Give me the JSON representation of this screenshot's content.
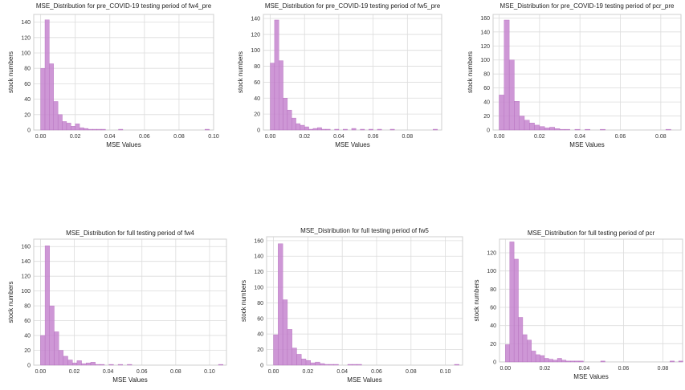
{
  "colors": {
    "bar_fill": "#c685cf",
    "bar_stroke": "#b56fbe",
    "grid": "#dcdcdc",
    "frame": "#cfcfcf"
  },
  "chart_data": [
    {
      "type": "bar",
      "title": "MSE_Distribution for pre_COVID-19 testing period of fw4_pre",
      "xlabel": "MSE Values",
      "ylabel": "stock numbers",
      "bin_start": 0.0,
      "bin_width": 0.0025,
      "values": [
        80,
        143,
        86,
        37,
        20,
        11,
        9,
        5,
        8,
        3,
        2,
        1,
        1,
        1,
        1,
        0,
        0,
        0,
        1,
        0,
        0,
        0,
        0,
        0,
        0,
        0,
        0,
        0,
        0,
        0,
        0,
        0,
        0,
        0,
        0,
        0,
        0,
        0,
        1
      ],
      "xlim": [
        -0.004,
        0.1
      ],
      "ylim": [
        0,
        150
      ],
      "xticks": [
        0.0,
        0.02,
        0.04,
        0.06,
        0.08,
        0.1
      ],
      "xtick_labels": [
        "0.00",
        "0.02",
        "0.04",
        "0.06",
        "0.08",
        "0.10"
      ],
      "yticks": [
        0,
        20,
        40,
        60,
        80,
        100,
        120,
        140
      ],
      "ytick_labels": [
        "0",
        "20",
        "40",
        "60",
        "80",
        "100",
        "120",
        "140"
      ],
      "grid": true
    },
    {
      "type": "bar",
      "title": "MSE_Distribution for pre_COVID-19 testing period of fw5_pre",
      "xlabel": "MSE Values",
      "ylabel": "stock numbers",
      "bin_start": 0.0,
      "bin_width": 0.0025,
      "values": [
        84,
        138,
        87,
        40,
        25,
        15,
        8,
        6,
        4,
        1,
        2,
        3,
        1,
        1,
        0,
        1,
        0,
        1,
        0,
        2,
        0,
        1,
        0,
        1,
        0,
        1,
        0,
        0,
        1,
        0,
        0,
        0,
        0,
        0,
        0,
        0,
        0,
        0,
        1
      ],
      "xlim": [
        -0.004,
        0.1
      ],
      "ylim": [
        0,
        145
      ],
      "xticks": [
        0.0,
        0.02,
        0.04,
        0.06,
        0.08
      ],
      "xtick_labels": [
        "0.00",
        "0.02",
        "0.04",
        "0.06",
        "0.08"
      ],
      "yticks": [
        0,
        20,
        40,
        60,
        80,
        100,
        120,
        140
      ],
      "ytick_labels": [
        "0",
        "20",
        "40",
        "60",
        "80",
        "100",
        "120",
        "140"
      ],
      "grid": true
    },
    {
      "type": "bar",
      "title": "MSE_Distribution for pre_COVID-19 testing period of pcr_pre",
      "xlabel": "MSE Values",
      "ylabel": "stock numbers",
      "bin_start": 0.0,
      "bin_width": 0.0025,
      "values": [
        50,
        157,
        100,
        41,
        20,
        14,
        10,
        7,
        5,
        3,
        4,
        2,
        1,
        1,
        0,
        1,
        0,
        1,
        0,
        0,
        1,
        0,
        0,
        0,
        0,
        0,
        0,
        0,
        0,
        0,
        0,
        0,
        0,
        1
      ],
      "xlim": [
        -0.003,
        0.09
      ],
      "ylim": [
        0,
        165
      ],
      "xticks": [
        0.0,
        0.02,
        0.04,
        0.06,
        0.08
      ],
      "xtick_labels": [
        "0.00",
        "0.02",
        "0.04",
        "0.06",
        "0.08"
      ],
      "yticks": [
        0,
        20,
        40,
        60,
        80,
        100,
        120,
        140,
        160
      ],
      "ytick_labels": [
        "0",
        "20",
        "40",
        "60",
        "80",
        "100",
        "120",
        "140",
        "160"
      ],
      "grid": true
    },
    {
      "type": "bar",
      "title": "MSE_Distribution for full testing period of fw4",
      "xlabel": "MSE Values",
      "ylabel": "stock numbers",
      "bin_start": 0.0,
      "bin_width": 0.0027,
      "values": [
        40,
        161,
        80,
        45,
        20,
        12,
        7,
        3,
        6,
        2,
        3,
        4,
        1,
        1,
        0,
        1,
        0,
        1,
        0,
        1,
        0,
        0,
        0,
        0,
        0,
        0,
        0,
        0,
        0,
        0,
        0,
        0,
        0,
        0,
        0,
        0,
        0,
        0,
        0,
        1
      ],
      "xlim": [
        -0.004,
        0.11
      ],
      "ylim": [
        0,
        170
      ],
      "xticks": [
        0.0,
        0.02,
        0.04,
        0.06,
        0.08,
        0.1
      ],
      "xtick_labels": [
        "0.00",
        "0.02",
        "0.04",
        "0.06",
        "0.08",
        "0.10"
      ],
      "yticks": [
        0,
        20,
        40,
        60,
        80,
        100,
        120,
        140,
        160
      ],
      "ytick_labels": [
        "0",
        "20",
        "40",
        "60",
        "80",
        "100",
        "120",
        "140",
        "160"
      ],
      "grid": true
    },
    {
      "type": "bar",
      "title": "MSE_Distribution for full testing period of fw5",
      "xlabel": "MSE Values",
      "ylabel": "stock numbers",
      "bin_start": 0.0,
      "bin_width": 0.0027,
      "values": [
        39,
        156,
        84,
        46,
        22,
        14,
        8,
        6,
        3,
        4,
        2,
        1,
        1,
        1,
        0,
        0,
        1,
        1,
        1,
        0,
        0,
        0,
        0,
        0,
        0,
        0,
        0,
        0,
        0,
        0,
        0,
        0,
        0,
        0,
        0,
        0,
        0,
        0,
        0,
        1
      ],
      "xlim": [
        -0.004,
        0.11
      ],
      "ylim": [
        0,
        165
      ],
      "xticks": [
        0.0,
        0.02,
        0.04,
        0.06,
        0.08,
        0.1
      ],
      "xtick_labels": [
        "0.00",
        "0.02",
        "0.04",
        "0.06",
        "0.08",
        "0.10"
      ],
      "yticks": [
        0,
        20,
        40,
        60,
        80,
        100,
        120,
        140,
        160
      ],
      "ytick_labels": [
        "0",
        "20",
        "40",
        "60",
        "80",
        "100",
        "120",
        "140",
        "160"
      ],
      "grid": true
    },
    {
      "type": "bar",
      "title": "MSE_Distribution for full testing period of pcr",
      "xlabel": "MSE Values",
      "ylabel": "stock numbers",
      "bin_start": 0.0,
      "bin_width": 0.0022,
      "values": [
        19,
        132,
        113,
        49,
        30,
        24,
        12,
        8,
        7,
        4,
        3,
        2,
        4,
        2,
        1,
        1,
        1,
        1,
        0,
        0,
        0,
        0,
        1,
        0,
        0,
        0,
        0,
        0,
        0,
        0,
        0,
        0,
        0,
        0,
        0,
        0,
        0,
        0,
        1,
        0,
        1
      ],
      "xlim": [
        -0.003,
        0.09
      ],
      "ylim": [
        0,
        135
      ],
      "xticks": [
        0.0,
        0.02,
        0.04,
        0.06,
        0.08
      ],
      "xtick_labels": [
        "0.00",
        "0.02",
        "0.04",
        "0.06",
        "0.08"
      ],
      "yticks": [
        0,
        20,
        40,
        60,
        80,
        100,
        120
      ],
      "ytick_labels": [
        "0",
        "20",
        "40",
        "60",
        "80",
        "100",
        "120"
      ],
      "grid": true
    }
  ]
}
